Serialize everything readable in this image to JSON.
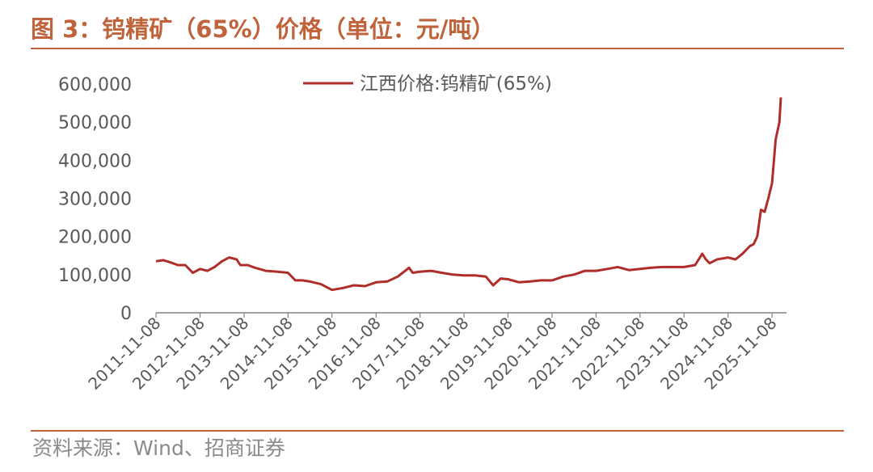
{
  "title": "图 3：钨精矿（65%）价格（单位：元/吨）",
  "source": "资料来源：Wind、招商证券",
  "colors": {
    "accent": "#C0633A",
    "series": "#B02E2A",
    "axis": "#808080",
    "text": "#595959"
  },
  "chart_data": {
    "type": "line",
    "title": "",
    "xlabel": "",
    "ylabel": "",
    "ylim": [
      0,
      600000
    ],
    "yticks": [
      "600,000",
      "500,000",
      "400,000",
      "300,000",
      "200,000",
      "100,000",
      "0"
    ],
    "ytick_values": [
      600000,
      500000,
      400000,
      300000,
      200000,
      100000,
      0
    ],
    "xticks": [
      "2011-11-08",
      "2012-11-08",
      "2013-11-08",
      "2014-11-08",
      "2015-11-08",
      "2016-11-08",
      "2017-11-08",
      "2018-11-08",
      "2019-11-08",
      "2020-11-08",
      "2021-11-08",
      "2022-11-08",
      "2023-11-08",
      "2024-11-08",
      "2025-11-08"
    ],
    "grid": false,
    "legend_position": "top-center",
    "series": [
      {
        "name": "江西价格:钨精矿(65%)",
        "x": [
          "2011-11-08",
          "2012-01-08",
          "2012-03-08",
          "2012-05-08",
          "2012-07-08",
          "2012-09-08",
          "2012-11-08",
          "2013-01-08",
          "2013-03-08",
          "2013-05-08",
          "2013-07-08",
          "2013-09-08",
          "2013-10-08",
          "2013-12-08",
          "2014-02-08",
          "2014-05-08",
          "2014-08-08",
          "2014-11-08",
          "2015-01-08",
          "2015-03-08",
          "2015-05-08",
          "2015-08-08",
          "2015-11-08",
          "2016-02-08",
          "2016-05-08",
          "2016-08-08",
          "2016-11-08",
          "2017-02-08",
          "2017-05-08",
          "2017-08-08",
          "2017-09-08",
          "2017-11-08",
          "2018-02-08",
          "2018-05-08",
          "2018-08-08",
          "2018-11-08",
          "2019-02-08",
          "2019-05-08",
          "2019-07-08",
          "2019-09-08",
          "2019-11-08",
          "2020-02-08",
          "2020-05-08",
          "2020-08-08",
          "2020-11-08",
          "2021-02-08",
          "2021-05-08",
          "2021-08-08",
          "2021-11-08",
          "2022-02-08",
          "2022-05-08",
          "2022-08-08",
          "2022-11-08",
          "2023-02-08",
          "2023-05-08",
          "2023-08-08",
          "2023-11-08",
          "2024-02-08",
          "2024-04-08",
          "2024-05-08",
          "2024-06-08",
          "2024-08-08",
          "2024-11-08",
          "2025-01-08",
          "2025-03-08",
          "2025-05-08",
          "2025-06-08",
          "2025-07-08",
          "2025-08-08",
          "2025-09-08",
          "2025-10-08",
          "2025-11-08",
          "2025-12-08",
          "2026-01-08",
          "2026-01-20"
        ],
        "values": [
          135000,
          138000,
          132000,
          125000,
          125000,
          105000,
          115000,
          110000,
          120000,
          135000,
          145000,
          140000,
          125000,
          125000,
          118000,
          110000,
          108000,
          105000,
          85000,
          85000,
          82000,
          75000,
          60000,
          65000,
          72000,
          70000,
          80000,
          82000,
          95000,
          118000,
          105000,
          108000,
          110000,
          105000,
          100000,
          98000,
          98000,
          95000,
          72000,
          90000,
          88000,
          80000,
          82000,
          85000,
          85000,
          95000,
          100000,
          110000,
          110000,
          115000,
          120000,
          112000,
          115000,
          118000,
          120000,
          120000,
          120000,
          125000,
          155000,
          140000,
          130000,
          140000,
          145000,
          140000,
          155000,
          175000,
          180000,
          200000,
          270000,
          265000,
          300000,
          340000,
          455000,
          500000,
          565000
        ]
      }
    ]
  }
}
